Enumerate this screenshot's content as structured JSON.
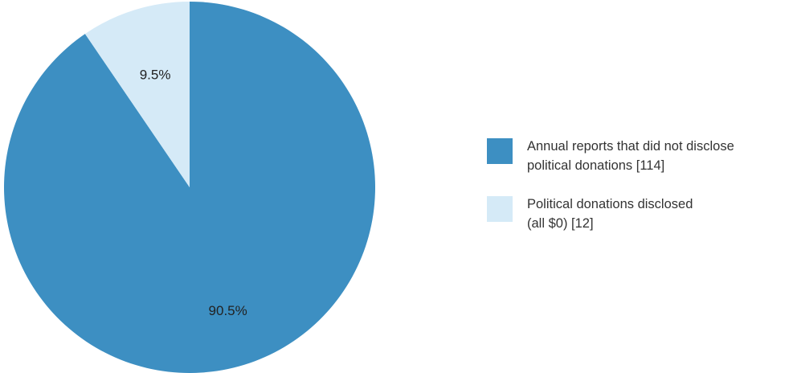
{
  "chart_data": {
    "type": "pie",
    "title": "",
    "slices": [
      {
        "label": "Annual reports that did not disclose political donations [114]",
        "value": 114,
        "percent_label": "90.5%",
        "color": "#3d8fc2"
      },
      {
        "label": "Political donations disclosed (all $0) [12]",
        "value": 12,
        "percent_label": "9.5%",
        "color": "#d5eaf7"
      }
    ],
    "start_angle": "12 o'clock",
    "direction": "clockwise",
    "legend_position": "right"
  },
  "legend": {
    "items": [
      {
        "line1": "Annual reports that did not disclose",
        "line2": "political donations [114]",
        "color": "#3d8fc2"
      },
      {
        "line1": "Political donations disclosed",
        "line2": "(all $0) [12]",
        "color": "#d5eaf7"
      }
    ]
  }
}
